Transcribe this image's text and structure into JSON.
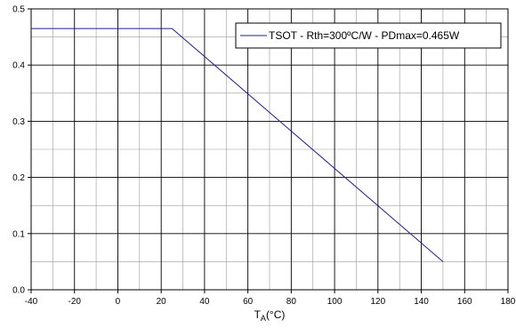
{
  "chart_data": {
    "type": "line",
    "title": "",
    "xlabel": "T",
    "xlabel_subscript": "A",
    "xlabel_unit": "(°C)",
    "ylabel": "",
    "xlim": [
      -40,
      180
    ],
    "ylim": [
      0,
      0.5
    ],
    "x_major_ticks": [
      -40,
      -20,
      0,
      20,
      40,
      60,
      80,
      100,
      120,
      140,
      160,
      180
    ],
    "x_minor_step": 10,
    "y_major_ticks": [
      0.0,
      0.1,
      0.2,
      0.3,
      0.4,
      0.5
    ],
    "y_tick_labels": [
      "0.0",
      "0.1",
      "0.2",
      "0.3",
      "0.4",
      "0.5"
    ],
    "y_minor_step": 0.05,
    "grid": true,
    "legend_position": "top-right",
    "series": [
      {
        "name": "TSOT - Rth=300ºC/W - PDmax=0.465W",
        "color": "#1f1f8f",
        "x": [
          -40,
          25,
          150
        ],
        "y": [
          0.465,
          0.465,
          0.05
        ]
      }
    ]
  }
}
